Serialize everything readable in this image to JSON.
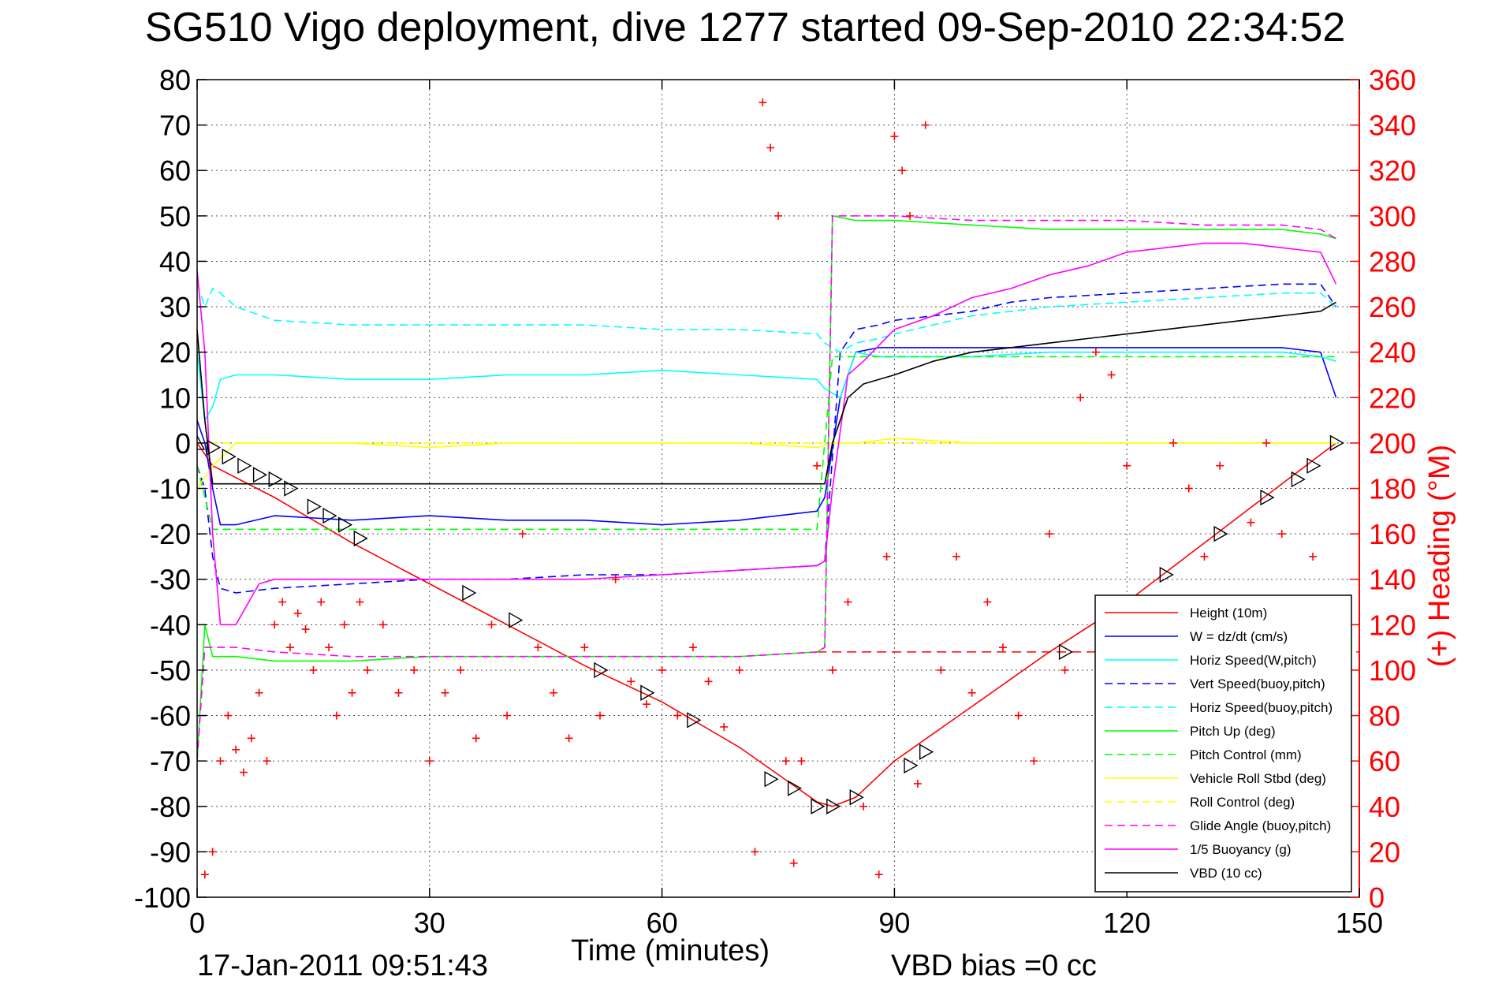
{
  "figure": {
    "title": "SG510 Vigo deployment, dive 1277 started 09-Sep-2010 22:34:52",
    "footer_left": "17-Jan-2011 09:51:43",
    "footer_right": "VBD bias =0 cc"
  },
  "chart_data": {
    "type": "line",
    "title": "SG510 Vigo deployment, dive 1277 started 09-Sep-2010 22:34:52",
    "xlabel": "Time (minutes)",
    "ylabel": "",
    "y2label": "(+) Heading (°M)",
    "xlim": [
      0,
      150
    ],
    "ylim": [
      -100,
      80
    ],
    "y2lim": [
      0,
      360
    ],
    "x_ticks": [
      0,
      30,
      60,
      90,
      120,
      150
    ],
    "y_ticks": [
      -100,
      -90,
      -80,
      -70,
      -60,
      -50,
      -40,
      -30,
      -20,
      -10,
      0,
      10,
      20,
      30,
      40,
      50,
      60,
      70,
      80
    ],
    "y2_ticks": [
      0,
      20,
      40,
      60,
      80,
      100,
      120,
      140,
      160,
      180,
      200,
      220,
      240,
      260,
      280,
      300,
      320,
      340,
      360
    ],
    "grid": true,
    "legend_position": "bottom-right",
    "colors": {
      "red": "#ff0000",
      "blue": "#0000ff",
      "cyan": "#00ffff",
      "green": "#00ff00",
      "yellow": "#ffff00",
      "magenta": "#ff00ff",
      "black": "#000000"
    },
    "series": [
      {
        "name": "Height (10m)",
        "color": "#ff0000",
        "style": "solid",
        "x": [
          0,
          2,
          10,
          20,
          30,
          40,
          50,
          60,
          70,
          80,
          82,
          85,
          90,
          100,
          110,
          120,
          130,
          140,
          147
        ],
        "y": [
          0,
          -5,
          -12,
          -22,
          -31,
          -40,
          -49,
          -57,
          -67,
          -79,
          -80,
          -78,
          -70,
          -58,
          -46,
          -35,
          -22,
          -9,
          0
        ]
      },
      {
        "name": "W = dz/dt (cm/s)",
        "color": "#0000ff",
        "style": "solid",
        "x": [
          0,
          1,
          2,
          3,
          5,
          10,
          20,
          30,
          40,
          50,
          60,
          70,
          80,
          81,
          83,
          85,
          88,
          90,
          95,
          100,
          110,
          120,
          130,
          140,
          145,
          147
        ],
        "y": [
          5,
          0,
          -10,
          -18,
          -18,
          -16,
          -17,
          -16,
          -17,
          -17,
          -18,
          -17,
          -15,
          -12,
          10,
          20,
          21,
          21,
          21,
          21,
          21,
          21,
          21,
          21,
          20,
          10
        ]
      },
      {
        "name": "Horiz Speed(W,pitch)",
        "color": "#00ffff",
        "style": "solid",
        "x": [
          0,
          1,
          2,
          3,
          5,
          10,
          20,
          30,
          40,
          50,
          60,
          70,
          80,
          81,
          83,
          85,
          88,
          90,
          95,
          100,
          110,
          120,
          130,
          140,
          145,
          147
        ],
        "y": [
          20,
          5,
          8,
          14,
          15,
          15,
          14,
          14,
          15,
          15,
          16,
          15,
          14,
          12,
          10,
          20,
          19,
          19,
          19,
          19,
          20,
          20,
          20,
          20,
          19,
          18
        ]
      },
      {
        "name": "Vert Speed(buoy,pitch)",
        "color": "#0000ff",
        "style": "dashed",
        "x": [
          0,
          1,
          2,
          3,
          5,
          10,
          20,
          30,
          40,
          50,
          60,
          70,
          80,
          81,
          83,
          85,
          88,
          90,
          95,
          100,
          105,
          110,
          120,
          130,
          140,
          145,
          147
        ],
        "y": [
          -5,
          -10,
          -25,
          -32,
          -33,
          -32,
          -31,
          -30,
          -30,
          -29,
          -29,
          -28,
          -27,
          -26,
          20,
          25,
          26,
          27,
          28,
          29,
          31,
          32,
          33,
          34,
          35,
          35,
          30
        ]
      },
      {
        "name": "Horiz Speed(buoy,pitch)",
        "color": "#00ffff",
        "style": "dashed",
        "x": [
          0,
          1,
          2,
          3,
          5,
          10,
          20,
          30,
          40,
          50,
          60,
          70,
          80,
          81,
          83,
          85,
          88,
          90,
          95,
          100,
          110,
          120,
          130,
          140,
          145,
          147
        ],
        "y": [
          35,
          30,
          34,
          33,
          30,
          27,
          26,
          26,
          26,
          26,
          25,
          25,
          24,
          22,
          20,
          22,
          23,
          24,
          26,
          28,
          30,
          31,
          32,
          33,
          33,
          30
        ]
      },
      {
        "name": "Pitch Up (deg)",
        "color": "#00ff00",
        "style": "solid",
        "x": [
          0,
          1,
          2,
          3,
          5,
          10,
          20,
          30,
          40,
          50,
          60,
          70,
          80,
          81,
          82,
          85,
          90,
          100,
          110,
          120,
          130,
          140,
          145,
          147
        ],
        "y": [
          -70,
          -40,
          -47,
          -47,
          -47,
          -48,
          -48,
          -47,
          -47,
          -47,
          -47,
          -47,
          -46,
          -45,
          50,
          49,
          49,
          48,
          47,
          47,
          47,
          47,
          46,
          45
        ]
      },
      {
        "name": "Pitch Control (mm)",
        "color": "#00ff00",
        "style": "dashed",
        "x": [
          0,
          2,
          5,
          10,
          20,
          40,
          60,
          80,
          82,
          90,
          100,
          110,
          120,
          130,
          140,
          147
        ],
        "y": [
          -5,
          -19,
          -19,
          -19,
          -19,
          -19,
          -19,
          -19,
          19,
          19,
          19,
          19,
          19,
          19,
          19,
          19
        ]
      },
      {
        "name": "Vehicle Roll Stbd (deg)",
        "color": "#ffff00",
        "style": "solid",
        "x": [
          0,
          2,
          5,
          10,
          20,
          30,
          40,
          50,
          60,
          70,
          80,
          82,
          85,
          90,
          100,
          110,
          120,
          130,
          140,
          147
        ],
        "y": [
          -10,
          -5,
          0,
          0,
          0,
          -1,
          0,
          0,
          0,
          0,
          -1,
          0,
          0,
          1,
          0,
          0,
          0,
          0,
          0,
          0
        ]
      },
      {
        "name": "Roll Control (deg)",
        "color": "#ffff00",
        "style": "dashed",
        "x": [
          0,
          2,
          5,
          10,
          20,
          30,
          40,
          50,
          60,
          70,
          80,
          82,
          90,
          100,
          110,
          120,
          130,
          140,
          147
        ],
        "y": [
          0,
          0,
          0,
          0,
          0,
          0,
          0,
          0,
          0,
          0,
          0,
          0,
          0,
          0,
          0,
          0,
          0,
          0,
          0
        ]
      },
      {
        "name": "Glide Angle (buoy,pitch)",
        "color": "#ff00ff",
        "style": "dashed",
        "x": [
          0,
          1,
          2,
          3,
          5,
          10,
          20,
          30,
          40,
          50,
          60,
          70,
          80,
          81,
          82,
          85,
          90,
          100,
          110,
          120,
          130,
          140,
          145,
          147
        ],
        "y": [
          -70,
          -45,
          -45,
          -45,
          -45,
          -46,
          -47,
          -47,
          -47,
          -47,
          -47,
          -47,
          -46,
          -45,
          50,
          50,
          50,
          49,
          49,
          49,
          48,
          48,
          47,
          45
        ]
      },
      {
        "name": "1/5 Buoyancy (g)",
        "color": "#ff00ff",
        "style": "solid",
        "x": [
          0,
          1,
          2,
          3,
          5,
          8,
          10,
          20,
          30,
          40,
          50,
          60,
          70,
          80,
          81,
          82,
          84,
          86,
          90,
          95,
          100,
          105,
          110,
          115,
          120,
          125,
          130,
          135,
          140,
          145,
          147
        ],
        "y": [
          38,
          20,
          -20,
          -40,
          -40,
          -31,
          -30,
          -30,
          -30,
          -30,
          -30,
          -29,
          -28,
          -27,
          -26,
          -10,
          15,
          18,
          25,
          28,
          32,
          34,
          37,
          39,
          42,
          43,
          44,
          44,
          43,
          42,
          35
        ]
      },
      {
        "name": "VBD (10 cc)",
        "color": "#000000",
        "style": "solid",
        "x": [
          0,
          1,
          2,
          3,
          5,
          10,
          20,
          30,
          40,
          50,
          60,
          70,
          80,
          81,
          82,
          84,
          86,
          90,
          95,
          100,
          110,
          120,
          130,
          140,
          145,
          147
        ],
        "y": [
          25,
          5,
          -9,
          -9,
          -9,
          -9,
          -9,
          -9,
          -9,
          -9,
          -9,
          -9,
          -9,
          -9,
          0,
          10,
          13,
          15,
          18,
          20,
          22,
          24,
          26,
          28,
          29,
          31
        ]
      }
    ],
    "heading_points": {
      "name": "(+) Heading",
      "axis": "right",
      "x": [
        1,
        2,
        3,
        4,
        5,
        6,
        7,
        8,
        9,
        10,
        11,
        12,
        13,
        14,
        15,
        16,
        17,
        18,
        19,
        20,
        21,
        22,
        24,
        26,
        28,
        30,
        32,
        34,
        36,
        38,
        40,
        42,
        44,
        46,
        48,
        50,
        52,
        54,
        56,
        58,
        60,
        62,
        64,
        66,
        68,
        70,
        72,
        73,
        74,
        75,
        76,
        77,
        78,
        80,
        82,
        84,
        86,
        88,
        89,
        90,
        91,
        92,
        93,
        94,
        96,
        98,
        100,
        102,
        104,
        106,
        108,
        110,
        112,
        114,
        116,
        118,
        120,
        122,
        124,
        126,
        128,
        130,
        132,
        134,
        136,
        138,
        140,
        142,
        144,
        146
      ],
      "y": [
        10,
        20,
        60,
        80,
        65,
        55,
        70,
        90,
        60,
        120,
        130,
        110,
        125,
        118,
        100,
        130,
        110,
        80,
        120,
        90,
        130,
        100,
        120,
        90,
        100,
        60,
        90,
        100,
        70,
        120,
        80,
        160,
        110,
        90,
        70,
        110,
        80,
        140,
        95,
        85,
        100,
        80,
        110,
        95,
        75,
        100,
        20,
        350,
        330,
        300,
        60,
        15,
        60,
        190,
        100,
        130,
        40,
        10,
        150,
        335,
        320,
        300,
        50,
        340,
        100,
        150,
        90,
        130,
        110,
        80,
        60,
        160,
        100,
        220,
        240,
        230,
        190,
        80,
        60,
        200,
        180,
        150,
        190,
        100,
        165,
        200,
        160,
        130,
        150,
        120
      ]
    },
    "triangle_markers": {
      "x": [
        0,
        2,
        4,
        6,
        8,
        10,
        12,
        15,
        17,
        19,
        21,
        35,
        41,
        52,
        58,
        64,
        74,
        77,
        80,
        82,
        85,
        92,
        94,
        112,
        125,
        132,
        138,
        142,
        144,
        147
      ],
      "y": [
        0,
        -1,
        -3,
        -5,
        -7,
        -8,
        -10,
        -14,
        -16,
        -18,
        -21,
        -33,
        -39,
        -50,
        -55,
        -61,
        -74,
        -76,
        -80,
        -80,
        -78,
        -71,
        -68,
        -46,
        -29,
        -20,
        -12,
        -8,
        -5,
        0
      ]
    },
    "reference_lines": [
      {
        "y": -46,
        "color": "#ff0000",
        "style": "dashed",
        "x_from": 80,
        "x_to": 150
      }
    ]
  }
}
